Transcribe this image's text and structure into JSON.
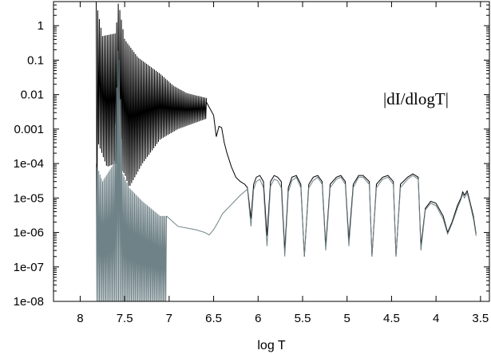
{
  "chart_data": {
    "type": "line",
    "title": "",
    "xlabel": "log T",
    "ylabel": "",
    "x_reversed": true,
    "y_scale": "log",
    "xlim": [
      8.3,
      3.4
    ],
    "ylim": [
      1e-08,
      5
    ],
    "grid": false,
    "legend": "none",
    "annotation": "|dI/dlogT|",
    "x_ticks": [
      {
        "value": 8,
        "label": "8"
      },
      {
        "value": 7.5,
        "label": "7.5"
      },
      {
        "value": 7,
        "label": "7"
      },
      {
        "value": 6.5,
        "label": "6.5"
      },
      {
        "value": 6,
        "label": "6"
      },
      {
        "value": 5.5,
        "label": "5.5"
      },
      {
        "value": 5,
        "label": "5"
      },
      {
        "value": 4.5,
        "label": "4.5"
      },
      {
        "value": 4,
        "label": "4"
      },
      {
        "value": 3.5,
        "label": "3.5"
      }
    ],
    "y_ticks": [
      {
        "value": 1,
        "label": "1"
      },
      {
        "value": 0.1,
        "label": "0.1"
      },
      {
        "value": 0.01,
        "label": "0.01"
      },
      {
        "value": 0.001,
        "label": "0.001"
      },
      {
        "value": 0.0001,
        "label": "1e-04"
      },
      {
        "value": 1e-05,
        "label": "1e-05"
      },
      {
        "value": 1e-06,
        "label": "1e-06"
      },
      {
        "value": 1e-07,
        "label": "1e-07"
      },
      {
        "value": 1e-08,
        "label": "1e-08"
      }
    ],
    "series": [
      {
        "color": "#000000",
        "oscillating_region": {
          "x_start": 7.82,
          "x_end": 6.58,
          "cycles": 70,
          "upper": [
            [
              7.82,
              5
            ],
            [
              7.75,
              0.5
            ],
            [
              7.6,
              0.6
            ],
            [
              7.57,
              5
            ],
            [
              7.5,
              0.4
            ],
            [
              7.35,
              0.12
            ],
            [
              7.1,
              0.04
            ],
            [
              6.95,
              0.018
            ],
            [
              6.8,
              0.011
            ],
            [
              6.58,
              0.008
            ]
          ],
          "lower": [
            [
              7.82,
              1e-08
            ],
            [
              7.8,
              0.0004
            ],
            [
              7.7,
              8e-05
            ],
            [
              7.6,
              0.0001
            ],
            [
              7.5,
              5e-05
            ],
            [
              7.45,
              2e-05
            ],
            [
              7.3,
              0.0001
            ],
            [
              7.1,
              0.0005
            ],
            [
              6.9,
              0.001
            ],
            [
              6.58,
              0.002
            ]
          ]
        },
        "points": [
          [
            6.58,
            0.006
          ],
          [
            6.5,
            0.0025
          ],
          [
            6.47,
            0.0006
          ],
          [
            6.44,
            0.0012
          ],
          [
            6.41,
            0.0011
          ],
          [
            6.38,
            0.0004
          ],
          [
            6.35,
            0.0002
          ],
          [
            6.3,
            8e-05
          ],
          [
            6.25,
            4e-05
          ],
          [
            6.2,
            3e-05
          ],
          [
            6.15,
            2.5e-05
          ],
          [
            6.12,
            2e-05
          ],
          [
            6.08,
            2.5e-06
          ],
          [
            6.05,
            2.5e-05
          ],
          [
            6.02,
            4e-05
          ],
          [
            5.98,
            4.5e-05
          ],
          [
            5.94,
            3e-05
          ],
          [
            5.9,
            8e-07
          ],
          [
            5.86,
            3e-05
          ],
          [
            5.82,
            4.5e-05
          ],
          [
            5.78,
            4e-05
          ],
          [
            5.74,
            3e-05
          ],
          [
            5.7,
            3e-07
          ],
          [
            5.66,
            2e-05
          ],
          [
            5.62,
            4e-05
          ],
          [
            5.57,
            4.5e-05
          ],
          [
            5.52,
            2.5e-05
          ],
          [
            5.48,
            2e-07
          ],
          [
            5.43,
            2.5e-05
          ],
          [
            5.38,
            4e-05
          ],
          [
            5.33,
            4.5e-05
          ],
          [
            5.28,
            3e-05
          ],
          [
            5.24,
            4e-07
          ],
          [
            5.19,
            2.5e-05
          ],
          [
            5.12,
            4e-05
          ],
          [
            5.07,
            4.5e-05
          ],
          [
            5.02,
            3e-05
          ],
          [
            4.98,
            6e-07
          ],
          [
            4.93,
            2.5e-05
          ],
          [
            4.87,
            4.5e-05
          ],
          [
            4.82,
            4.5e-05
          ],
          [
            4.75,
            3e-05
          ],
          [
            4.72,
            2e-07
          ],
          [
            4.67,
            2.5e-05
          ],
          [
            4.6,
            4e-05
          ],
          [
            4.54,
            4.5e-05
          ],
          [
            4.48,
            3e-05
          ],
          [
            4.45,
            2e-07
          ],
          [
            4.4,
            2.5e-05
          ],
          [
            4.32,
            4e-05
          ],
          [
            4.26,
            5e-05
          ],
          [
            4.2,
            4e-05
          ],
          [
            4.17,
            4e-07
          ],
          [
            4.12,
            5e-06
          ],
          [
            4.06,
            8e-06
          ],
          [
            4.0,
            7e-06
          ],
          [
            3.92,
            3e-06
          ],
          [
            3.87,
            1e-06
          ],
          [
            3.82,
            2e-06
          ],
          [
            3.76,
            6e-06
          ],
          [
            3.72,
            1e-05
          ],
          [
            3.7,
            1.5e-05
          ],
          [
            3.68,
            1.2e-05
          ],
          [
            3.65,
            1.6e-05
          ],
          [
            3.62,
            8e-06
          ],
          [
            3.58,
            3e-06
          ],
          [
            3.55,
            9e-07
          ]
        ]
      },
      {
        "color": "#6f8287",
        "oscillating_region": {
          "x_start": 7.82,
          "x_end": 7.03,
          "cycles": 55,
          "upper": [
            [
              7.82,
              0.0001
            ],
            [
              7.75,
              3e-05
            ],
            [
              7.62,
              0.0001
            ],
            [
              7.57,
              0.5
            ],
            [
              7.52,
              5e-05
            ],
            [
              7.45,
              2e-05
            ],
            [
              7.3,
              8e-06
            ],
            [
              7.1,
              3e-06
            ],
            [
              7.03,
              3e-06
            ]
          ],
          "lower": [
            [
              7.82,
              1e-08
            ],
            [
              7.5,
              1e-08
            ],
            [
              7.3,
              1e-08
            ],
            [
              7.1,
              1e-08
            ],
            [
              7.03,
              1e-08
            ]
          ]
        },
        "points": [
          [
            7.03,
            3e-06
          ],
          [
            6.9,
            1.5e-06
          ],
          [
            6.7,
            1.2e-06
          ],
          [
            6.6,
            1e-06
          ],
          [
            6.55,
            8.5e-07
          ],
          [
            6.5,
            1.2e-06
          ],
          [
            6.45,
            2e-06
          ],
          [
            6.4,
            3.5e-06
          ],
          [
            6.3,
            6.5e-06
          ],
          [
            6.2,
            1.2e-05
          ],
          [
            6.12,
            1.8e-05
          ],
          [
            6.08,
            1.5e-06
          ],
          [
            6.05,
            1.8e-05
          ],
          [
            6.02,
            3e-05
          ],
          [
            5.98,
            3.5e-05
          ],
          [
            5.94,
            2e-05
          ],
          [
            5.9,
            4e-07
          ],
          [
            5.86,
            2.2e-05
          ],
          [
            5.82,
            3.5e-05
          ],
          [
            5.78,
            3.2e-05
          ],
          [
            5.74,
            2e-05
          ],
          [
            5.7,
            2e-07
          ],
          [
            5.66,
            1.5e-05
          ],
          [
            5.62,
            3.2e-05
          ],
          [
            5.57,
            4e-05
          ],
          [
            5.52,
            2e-05
          ],
          [
            5.48,
            2e-07
          ],
          [
            5.43,
            2e-05
          ],
          [
            5.38,
            3.2e-05
          ],
          [
            5.33,
            4e-05
          ],
          [
            5.28,
            2.5e-05
          ],
          [
            5.24,
            3e-07
          ],
          [
            5.19,
            2e-05
          ],
          [
            5.12,
            3.5e-05
          ],
          [
            5.07,
            4e-05
          ],
          [
            5.02,
            2.5e-05
          ],
          [
            4.98,
            4e-07
          ],
          [
            4.93,
            2e-05
          ],
          [
            4.87,
            4e-05
          ],
          [
            4.82,
            4e-05
          ],
          [
            4.75,
            2.5e-05
          ],
          [
            4.72,
            2e-07
          ],
          [
            4.67,
            2e-05
          ],
          [
            4.6,
            3.5e-05
          ],
          [
            4.54,
            4e-05
          ],
          [
            4.48,
            2.5e-05
          ],
          [
            4.45,
            2e-07
          ],
          [
            4.4,
            2e-05
          ],
          [
            4.32,
            3.5e-05
          ],
          [
            4.26,
            4.5e-05
          ],
          [
            4.2,
            3.5e-05
          ],
          [
            4.17,
            3e-07
          ],
          [
            4.12,
            4.5e-06
          ],
          [
            4.06,
            7e-06
          ],
          [
            4.0,
            6e-06
          ],
          [
            3.92,
            2.5e-06
          ],
          [
            3.87,
            9e-07
          ],
          [
            3.82,
            1.8e-06
          ],
          [
            3.76,
            5e-06
          ],
          [
            3.72,
            9e-06
          ],
          [
            3.7,
            1.3e-05
          ],
          [
            3.68,
            1e-05
          ],
          [
            3.65,
            1.4e-05
          ],
          [
            3.62,
            7e-06
          ],
          [
            3.58,
            2.5e-06
          ],
          [
            3.55,
            8e-07
          ]
        ]
      }
    ]
  }
}
